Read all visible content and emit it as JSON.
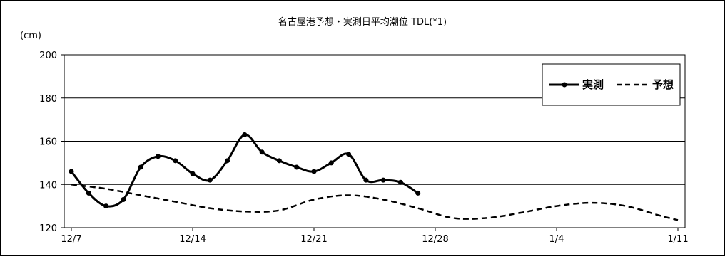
{
  "chart_data": {
    "type": "line",
    "title": "名古屋港予想・実測日平均潮位 TDL(*1)",
    "ylabel": "(cm)",
    "xlabel": "",
    "ylim": [
      120,
      200
    ],
    "yticks": [
      120,
      140,
      160,
      180,
      200
    ],
    "x_tick_labels": [
      "12/7",
      "12/14",
      "12/21",
      "12/28",
      "1/4",
      "1/11"
    ],
    "grid": "horizontal",
    "legend_position": "top-right",
    "series": [
      {
        "name": "実測",
        "style": "solid-with-markers",
        "color": "#000000",
        "x": [
          "12/7",
          "12/8",
          "12/9",
          "12/10",
          "12/11",
          "12/12",
          "12/13",
          "12/14",
          "12/15",
          "12/16",
          "12/17",
          "12/18",
          "12/19",
          "12/20",
          "12/21",
          "12/22",
          "12/23",
          "12/24",
          "12/25",
          "12/26",
          "12/27"
        ],
        "values": [
          146,
          136,
          130,
          133,
          148,
          153,
          151,
          145,
          142,
          151,
          163,
          155,
          151,
          148,
          146,
          150,
          154,
          142,
          142,
          141,
          136
        ]
      },
      {
        "name": "予想",
        "style": "dashed",
        "color": "#000000",
        "x": [
          "12/7",
          "12/9",
          "12/11",
          "12/13",
          "12/15",
          "12/17",
          "12/19",
          "12/21",
          "12/23",
          "12/25",
          "12/27",
          "12/29",
          "12/31",
          "1/2",
          "1/4",
          "1/6",
          "1/8",
          "1/10",
          "1/11"
        ],
        "values": [
          140,
          138,
          135,
          132,
          129,
          127.5,
          128,
          133,
          135,
          133,
          129,
          124.5,
          124.5,
          127,
          130,
          131.5,
          130,
          125.5,
          123.5
        ]
      }
    ]
  }
}
